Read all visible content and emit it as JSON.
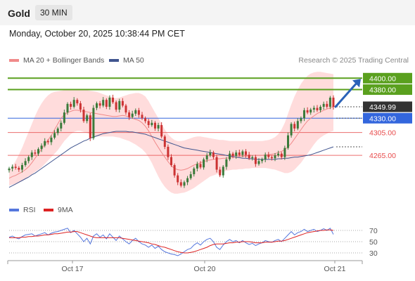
{
  "header": {
    "title": "Gold",
    "timeframe": "30 MIN"
  },
  "datetime": "Monday, October 20, 2025 10:38:44 PM CET",
  "legend": {
    "ma_bb": "MA 20 + Bollinger Bands",
    "ma50": "MA 50",
    "rsi": "RSI",
    "rsi_ma": "9MA"
  },
  "credit": "Research © 2025 Trading Central",
  "colors": {
    "resistance": "#5aa01e",
    "pivot": "#3366dd",
    "support": "#e84b4b",
    "bollinger": "#ffd6d6",
    "ma20": "#f08a8a",
    "ma50": "#40558f",
    "candle_up": "#3a7a3a",
    "candle_down": "#cc3333",
    "rsi": "#5577dd",
    "rsi_ma": "#dd2222",
    "arrow": "#2a62b8"
  },
  "chart_data": [
    {
      "type": "candlestick",
      "x_ticks": [
        "Oct 17",
        "Oct 20",
        "Oct 21"
      ],
      "levels": [
        {
          "value": 4400.0,
          "label": "4400.00",
          "kind": "resistance"
        },
        {
          "value": 4380.0,
          "label": "4380.00",
          "kind": "resistance"
        },
        {
          "value": 4349.99,
          "label": "4349.99",
          "kind": "last"
        },
        {
          "value": 4330.0,
          "label": "4330.00",
          "kind": "pivot"
        },
        {
          "value": 4305.0,
          "label": "4305.00",
          "kind": "support"
        },
        {
          "value": 4265.0,
          "label": "4265.00",
          "kind": "support"
        }
      ],
      "ylim": [
        4205,
        4420
      ],
      "close": [
        4242,
        4245,
        4243,
        4240,
        4248,
        4255,
        4262,
        4270,
        4268,
        4276,
        4282,
        4290,
        4288,
        4296,
        4304,
        4312,
        4322,
        4340,
        4355,
        4350,
        4362,
        4356,
        4345,
        4325,
        4335,
        4295,
        4348,
        4356,
        4352,
        4362,
        4350,
        4366,
        4358,
        4345,
        4360,
        4352,
        4340,
        4332,
        4338,
        4344,
        4336,
        4330,
        4325,
        4318,
        4322,
        4312,
        4318,
        4298,
        4280,
        4262,
        4248,
        4230,
        4218,
        4212,
        4218,
        4225,
        4232,
        4242,
        4250,
        4244,
        4258,
        4265,
        4270,
        4262,
        4240,
        4230,
        4245,
        4258,
        4268,
        4264,
        4270,
        4266,
        4272,
        4266,
        4260,
        4262,
        4250,
        4255,
        4258,
        4266,
        4262,
        4260,
        4265,
        4268,
        4262,
        4278,
        4300,
        4320,
        4312,
        4325,
        4330,
        4344,
        4340,
        4345,
        4348,
        4344,
        4350,
        4355,
        4350,
        4366,
        4349.99
      ],
      "ma20": [
        4225,
        4228,
        4230,
        4233,
        4236,
        4240,
        4245,
        4252,
        4260,
        4268,
        4276,
        4284,
        4292,
        4300,
        4310,
        4320,
        4330,
        4336,
        4340,
        4342,
        4344,
        4344,
        4343,
        4342,
        4341,
        4340,
        4339,
        4338,
        4337,
        4336,
        4335,
        4334,
        4333,
        4333,
        4334,
        4335,
        4334,
        4332,
        4330,
        4328,
        4326,
        4322,
        4316,
        4308,
        4298,
        4288,
        4279,
        4270,
        4262,
        4254,
        4247,
        4242,
        4240,
        4239,
        4240,
        4242,
        4245,
        4248,
        4250,
        4252,
        4254,
        4256,
        4257,
        4258,
        4259,
        4259,
        4260,
        4260,
        4261,
        4262,
        4262,
        4263,
        4263,
        4264,
        4264,
        4265,
        4265,
        4265,
        4265,
        4266,
        4266,
        4267,
        4268,
        4270,
        4272,
        4275,
        4280,
        4286,
        4294,
        4302,
        4310,
        4318,
        4325,
        4330,
        4334,
        4338,
        4341,
        4344,
        4346,
        4348,
        4350
      ],
      "bb_upper": [
        4238,
        4246,
        4255,
        4266,
        4278,
        4292,
        4306,
        4320,
        4334,
        4346,
        4356,
        4364,
        4370,
        4374,
        4376,
        4377,
        4378,
        4379,
        4380,
        4380,
        4380,
        4380,
        4380,
        4380,
        4379,
        4378,
        4377,
        4376,
        4374,
        4372,
        4370,
        4368,
        4366,
        4365,
        4366,
        4368,
        4370,
        4372,
        4373,
        4374,
        4374,
        4372,
        4368,
        4360,
        4350,
        4340,
        4330,
        4320,
        4310,
        4302,
        4296,
        4292,
        4290,
        4290,
        4291,
        4293,
        4295,
        4297,
        4298,
        4298,
        4297,
        4296,
        4295,
        4294,
        4293,
        4292,
        4292,
        4291,
        4290,
        4290,
        4290,
        4290,
        4290,
        4290,
        4290,
        4290,
        4290,
        4290,
        4290,
        4291,
        4292,
        4294,
        4297,
        4302,
        4310,
        4322,
        4338,
        4354,
        4368,
        4380,
        4390,
        4398,
        4404,
        4408,
        4410,
        4411,
        4411,
        4410,
        4409,
        4408,
        4407
      ],
      "bb_lower": [
        4212,
        4214,
        4215,
        4217,
        4220,
        4224,
        4228,
        4232,
        4236,
        4240,
        4244,
        4250,
        4256,
        4262,
        4268,
        4274,
        4282,
        4290,
        4296,
        4302,
        4306,
        4308,
        4308,
        4306,
        4304,
        4302,
        4300,
        4298,
        4298,
        4298,
        4298,
        4298,
        4298,
        4297,
        4296,
        4294,
        4292,
        4290,
        4287,
        4284,
        4280,
        4276,
        4270,
        4262,
        4252,
        4240,
        4228,
        4218,
        4210,
        4204,
        4200,
        4198,
        4198,
        4199,
        4200,
        4202,
        4205,
        4208,
        4212,
        4216,
        4220,
        4224,
        4228,
        4230,
        4232,
        4234,
        4236,
        4238,
        4239,
        4240,
        4240,
        4241,
        4241,
        4242,
        4242,
        4243,
        4243,
        4243,
        4243,
        4243,
        4242,
        4241,
        4240,
        4238,
        4236,
        4234,
        4234,
        4236,
        4240,
        4246,
        4252,
        4260,
        4268,
        4276,
        4284,
        4291,
        4296,
        4300,
        4303,
        4306,
        4308
      ],
      "ma50": [
        4209,
        4212,
        4215,
        4218,
        4221,
        4224,
        4227,
        4231,
        4234,
        4238,
        4242,
        4246,
        4250,
        4254,
        4258,
        4262,
        4266,
        4270,
        4274,
        4278,
        4281,
        4284,
        4287,
        4290,
        4292,
        4295,
        4297,
        4299,
        4301,
        4303,
        4304,
        4305,
        4306,
        4307,
        4307,
        4307,
        4307,
        4306,
        4306,
        4305,
        4304,
        4303,
        4302,
        4300,
        4298,
        4296,
        4294,
        4292,
        4290,
        4288,
        4286,
        4284,
        4282,
        4280,
        4278,
        4277,
        4276,
        4275,
        4274,
        4273,
        4272,
        4271,
        4270,
        4269,
        4268,
        4267,
        4266,
        4265,
        4264,
        4263,
        4262,
        4261,
        4260,
        4260,
        4259,
        4259,
        4258,
        4258,
        4258,
        4258,
        4258,
        4258,
        4258,
        4259,
        4259,
        4260,
        4260,
        4261,
        4262,
        4262,
        4263,
        4264,
        4265,
        4266,
        4268,
        4270,
        4272,
        4274,
        4276,
        4278,
        4280
      ]
    },
    {
      "type": "line",
      "name": "RSI",
      "ylim": [
        20,
        85
      ],
      "y_ticks": [
        70,
        50,
        30
      ],
      "rsi": [
        58,
        60,
        57,
        55,
        59,
        62,
        63,
        64,
        60,
        62,
        64,
        66,
        62,
        65,
        67,
        68,
        70,
        72,
        74,
        66,
        70,
        64,
        58,
        50,
        56,
        46,
        60,
        64,
        58,
        62,
        55,
        64,
        58,
        52,
        60,
        55,
        50,
        46,
        52,
        56,
        50,
        46,
        44,
        40,
        44,
        38,
        42,
        36,
        32,
        30,
        28,
        27,
        25,
        28,
        32,
        36,
        38,
        44,
        48,
        44,
        50,
        54,
        56,
        50,
        40,
        36,
        44,
        50,
        54,
        50,
        52,
        48,
        52,
        48,
        45,
        47,
        43,
        46,
        48,
        52,
        50,
        49,
        52,
        54,
        50,
        56,
        62,
        68,
        62,
        66,
        68,
        72,
        68,
        70,
        72,
        68,
        70,
        73,
        70,
        74,
        63
      ],
      "rsi_ma": [
        57,
        57,
        57,
        57,
        58,
        58,
        59,
        59,
        60,
        60,
        61,
        62,
        62,
        63,
        64,
        64,
        65,
        66,
        67,
        67,
        68,
        68,
        66,
        64,
        62,
        60,
        58,
        57,
        57,
        57,
        57,
        57,
        57,
        57,
        57,
        56,
        55,
        54,
        53,
        52,
        51,
        50,
        49,
        48,
        46,
        45,
        43,
        41,
        40,
        38,
        36,
        34,
        32,
        31,
        30,
        30,
        31,
        32,
        34,
        36,
        38,
        40,
        43,
        45,
        46,
        46,
        46,
        47,
        48,
        48,
        49,
        49,
        50,
        50,
        50,
        49,
        48,
        48,
        48,
        49,
        49,
        49,
        50,
        51,
        51,
        52,
        54,
        56,
        58,
        60,
        62,
        64,
        66,
        67,
        68,
        69,
        70,
        70,
        71,
        71,
        70
      ]
    }
  ]
}
